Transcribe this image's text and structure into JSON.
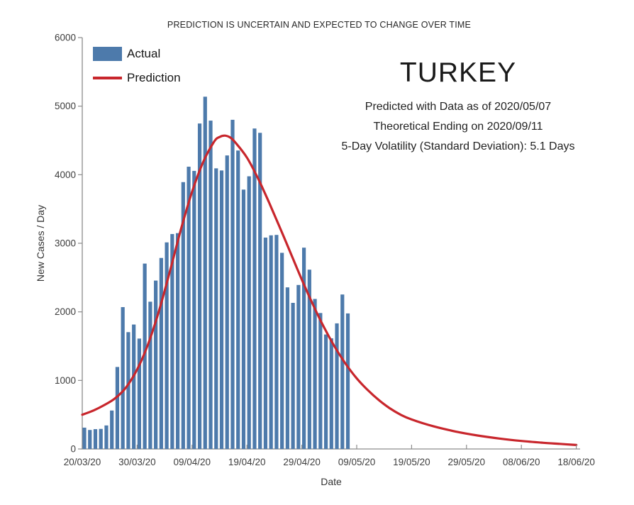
{
  "annotation": {
    "country": "TURKEY",
    "lines": [
      "Predicted with Data as of 2020/05/07",
      "Theoretical Ending on 2020/09/11",
      "5-Day Volatility (Standard Deviation): 5.1 Days"
    ]
  },
  "chart_data": {
    "type": "bar+line",
    "title": "PREDICTION IS UNCERTAIN AND EXPECTED TO CHANGE OVER TIME",
    "xlabel": "Date",
    "ylabel": "New Cases / Day",
    "ylim": [
      0,
      6000
    ],
    "yticks": [
      0,
      1000,
      2000,
      3000,
      4000,
      5000,
      6000
    ],
    "xlim_days": [
      0,
      90
    ],
    "xtick_days": [
      0,
      10,
      20,
      30,
      40,
      50,
      60,
      70,
      80,
      90
    ],
    "xtick_labels": [
      "20/03/20",
      "30/03/20",
      "09/04/20",
      "19/04/20",
      "29/04/20",
      "09/05/20",
      "19/05/20",
      "29/05/20",
      "08/06/20",
      "18/06/20"
    ],
    "grid": false,
    "legend_position": "top-left",
    "colors": {
      "actual": "#4d7aab",
      "prediction": "#c8262c",
      "axis": "#8c8c8c",
      "tick_text": "#3d3d3d"
    },
    "series": [
      {
        "name": "Actual",
        "type": "bar",
        "color": "#4d7aab",
        "start_date": "2020/03/20",
        "end_date": "2020/05/07",
        "values": [
          311,
          277,
          289,
          293,
          343,
          561,
          1196,
          2069,
          1704,
          1815,
          1610,
          2704,
          2148,
          2456,
          2786,
          3013,
          3135,
          3148,
          3892,
          4117,
          4056,
          4747,
          5138,
          4789,
          4093,
          4062,
          4281,
          4801,
          4353,
          3783,
          3977,
          4674,
          4611,
          3083,
          3116,
          3122,
          2861,
          2357,
          2131,
          2392,
          2936,
          2615,
          2188,
          1983,
          1670,
          1614,
          1832,
          2253,
          1977
        ]
      },
      {
        "name": "Prediction",
        "type": "line",
        "color": "#c8262c",
        "points": [
          [
            0,
            500
          ],
          [
            2,
            560
          ],
          [
            4,
            640
          ],
          [
            6,
            740
          ],
          [
            8,
            900
          ],
          [
            10,
            1160
          ],
          [
            12,
            1530
          ],
          [
            14,
            2020
          ],
          [
            16,
            2600
          ],
          [
            18,
            3210
          ],
          [
            20,
            3750
          ],
          [
            22,
            4180
          ],
          [
            24,
            4480
          ],
          [
            25,
            4550
          ],
          [
            26,
            4570
          ],
          [
            27,
            4540
          ],
          [
            28,
            4460
          ],
          [
            30,
            4250
          ],
          [
            32,
            3950
          ],
          [
            34,
            3600
          ],
          [
            36,
            3230
          ],
          [
            38,
            2850
          ],
          [
            40,
            2470
          ],
          [
            42,
            2110
          ],
          [
            44,
            1780
          ],
          [
            46,
            1490
          ],
          [
            48,
            1240
          ],
          [
            50,
            1030
          ],
          [
            52,
            860
          ],
          [
            54,
            715
          ],
          [
            56,
            595
          ],
          [
            58,
            500
          ],
          [
            60,
            430
          ],
          [
            64,
            330
          ],
          [
            68,
            255
          ],
          [
            72,
            197
          ],
          [
            76,
            152
          ],
          [
            80,
            117
          ],
          [
            84,
            90
          ],
          [
            87,
            74
          ],
          [
            90,
            58
          ]
        ]
      }
    ]
  }
}
